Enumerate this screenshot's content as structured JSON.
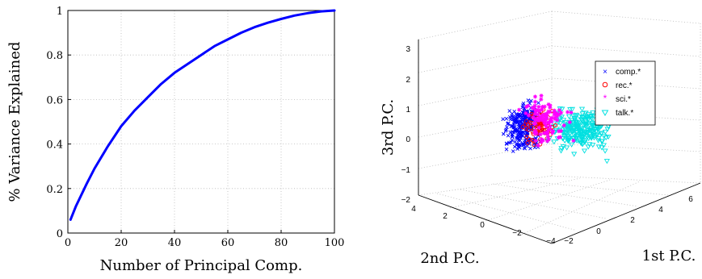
{
  "chart_data": [
    {
      "type": "line",
      "xlabel": "Number of Principal Comp.",
      "ylabel": "% Variance Explained",
      "xlim": [
        0,
        100
      ],
      "ylim": [
        0,
        1
      ],
      "xticks": [
        "0",
        "20",
        "40",
        "60",
        "80",
        "100"
      ],
      "yticks": [
        "0",
        "0.2",
        "0.4",
        "0.6",
        "0.8",
        "1"
      ],
      "grid": true,
      "series": [
        {
          "color": "#0000ff",
          "x": [
            1,
            2,
            3,
            5,
            7,
            10,
            15,
            20,
            25,
            30,
            35,
            40,
            45,
            50,
            55,
            60,
            65,
            70,
            75,
            80,
            85,
            90,
            95,
            100
          ],
          "values": [
            0.06,
            0.09,
            0.12,
            0.17,
            0.22,
            0.29,
            0.39,
            0.48,
            0.55,
            0.61,
            0.67,
            0.72,
            0.76,
            0.8,
            0.84,
            0.87,
            0.9,
            0.925,
            0.945,
            0.962,
            0.977,
            0.988,
            0.996,
            1.0
          ]
        }
      ]
    },
    {
      "type": "scatter",
      "projection": "3d",
      "xlabel": "1st P.C.",
      "ylabel": "2nd P.C.",
      "zlabel": "3rd P.C.",
      "xlim": [
        -2,
        6
      ],
      "ylim": [
        -4,
        4
      ],
      "zlim": [
        -2,
        3
      ],
      "xticks": [
        "−2",
        "0",
        "2",
        "4",
        "6"
      ],
      "yticks": [
        "−4",
        "−2",
        "0",
        "2",
        "4"
      ],
      "zticks": [
        "−2",
        "−1",
        "0",
        "1",
        "2",
        "3"
      ],
      "grid": true,
      "legend_position": "top-right",
      "series": [
        {
          "name": "comp.*",
          "marker": "x",
          "color": "#0000ff"
        },
        {
          "name": "rec.*",
          "marker": "o",
          "color": "#ff0000"
        },
        {
          "name": "sci.*",
          "marker": "*",
          "color": "#ff00ff"
        },
        {
          "name": "talk.*",
          "marker": "v",
          "color": "#00e0e0"
        }
      ]
    }
  ]
}
